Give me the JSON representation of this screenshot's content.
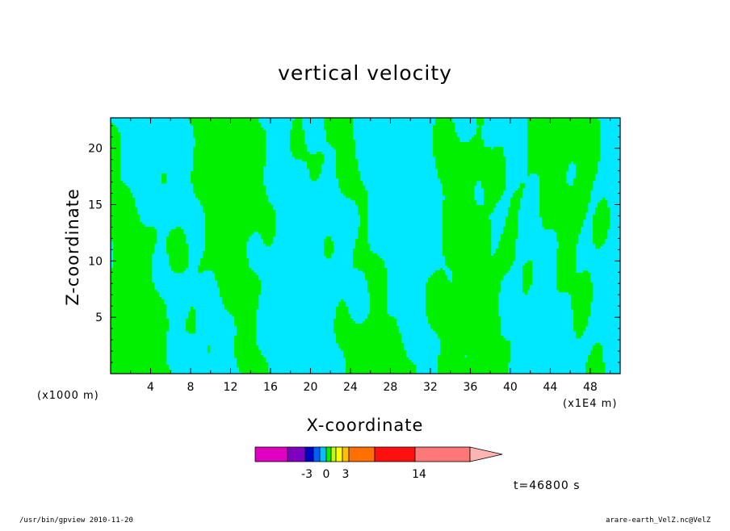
{
  "chart_data": {
    "type": "heatmap",
    "title": "vertical velocity",
    "xlabel": "X-coordinate",
    "ylabel": "Z-coordinate",
    "x_unit_left": "(x1000 m)",
    "x_unit_right": "(x1E4 m)",
    "x_ticks": [
      "4",
      "8",
      "12",
      "16",
      "20",
      "24",
      "28",
      "32",
      "36",
      "40",
      "44",
      "48"
    ],
    "x_tick_values": [
      4,
      8,
      12,
      16,
      20,
      24,
      28,
      32,
      36,
      40,
      44,
      48
    ],
    "xlim": [
      0,
      51
    ],
    "y_ticks": [
      "5",
      "10",
      "15",
      "20"
    ],
    "y_tick_values": [
      5,
      10,
      15,
      20
    ],
    "ylim": [
      0,
      22.7
    ],
    "colors": {
      "cyan": "#00e8ff",
      "green": "#00f000",
      "contour": "#000000"
    },
    "colorbar": {
      "tick_labels": [
        "-3",
        "0",
        "3",
        "14"
      ],
      "segment_colors": [
        "#e000c0",
        "#8000c0",
        "#0000c8",
        "#0060ff",
        "#00c0ff",
        "#00f000",
        "#c0ff00",
        "#ffff00",
        "#ffc000",
        "#ff7000",
        "#ff1010",
        "#ff7878",
        "#ffb4b4"
      ]
    },
    "time_label": "t=46800 s"
  },
  "footer": {
    "left": "/usr/bin/gpview   2010-11-20",
    "right": "arare-earth_VelZ.nc@VelZ"
  }
}
